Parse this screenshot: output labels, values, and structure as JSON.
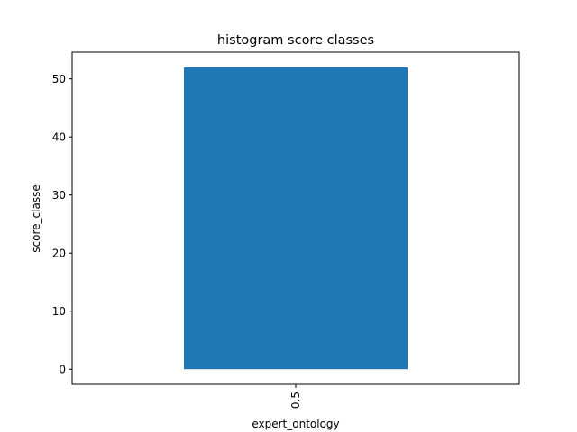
{
  "chart_data": {
    "type": "bar",
    "title": "histogram score classes",
    "xlabel": "expert_ontology",
    "ylabel": "score_classe",
    "categories": [
      "0.5"
    ],
    "values": [
      52
    ],
    "ylim": [
      -2.6,
      54.6
    ],
    "yticks": [
      0,
      10,
      20,
      30,
      40,
      50
    ],
    "ytick_labels": [
      "0",
      "10",
      "20",
      "30",
      "40",
      "50"
    ],
    "xtick_rotation": "vertical",
    "grid": false,
    "legend": "none",
    "bar_color": "#1f77b4"
  }
}
